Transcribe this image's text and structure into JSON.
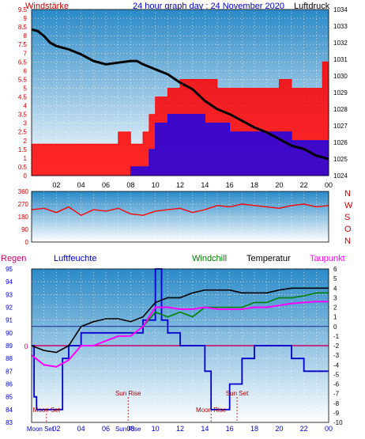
{
  "colors": {
    "wind_label": "#cc0000",
    "title": "#0000cc",
    "axis_text": "#000000",
    "wind_fill": "#ff0000",
    "gust_fill": "#0000ff",
    "pressure_line": "#000000",
    "plot_grad_top": "#2a8ac8",
    "plot_grad_bottom": "#ffffff",
    "dir_series": "#ff0000",
    "regen": "#cc0066",
    "luftfeuchte": "#0000cc",
    "windchill": "#008000",
    "temperatur": "#000000",
    "taupunkt": "#ff00ff",
    "astro_text": "#aa0000"
  },
  "header": {
    "left_label": "Windstärke",
    "title": "24 hour graph day : 24 November 2020",
    "right_label": "Luftdruck"
  },
  "chart_data": [
    {
      "type": "line",
      "name": "wind-and-pressure",
      "x_ticks": [
        "02",
        "04",
        "06",
        "08",
        "10",
        "12",
        "14",
        "16",
        "18",
        "20",
        "22",
        "00"
      ],
      "y_left_ticks": [
        "0",
        "0.5",
        "1",
        "1.5",
        "2",
        "2.5",
        "3",
        "3.5",
        "4",
        "4.5",
        "5",
        "5.5",
        "6",
        "6.5",
        "7",
        "7.5",
        "8",
        "8.5",
        "9",
        "9.5"
      ],
      "y_right_ticks": [
        "1024",
        "1025",
        "1026",
        "1027",
        "1028",
        "1029",
        "1030",
        "1031",
        "1032",
        "1033",
        "1034"
      ],
      "ylim_left": [
        0,
        9.5
      ],
      "ylim_right": [
        1024,
        1034
      ],
      "xlim_hours": [
        0,
        24
      ],
      "series": [
        {
          "role": "wind",
          "points": [
            [
              0,
              1.8
            ],
            [
              1,
              1.8
            ],
            [
              2,
              1.8
            ],
            [
              3,
              1.8
            ],
            [
              4,
              1.8
            ],
            [
              5,
              1.8
            ],
            [
              6,
              1.8
            ],
            [
              7,
              2.5
            ],
            [
              8,
              1.8
            ],
            [
              8.5,
              1.8
            ],
            [
              9,
              2.5
            ],
            [
              9.5,
              3.5
            ],
            [
              10,
              4.5
            ],
            [
              11,
              5
            ],
            [
              12,
              5.5
            ],
            [
              13,
              5.5
            ],
            [
              14,
              5.5
            ],
            [
              15,
              5
            ],
            [
              16,
              5
            ],
            [
              17,
              5
            ],
            [
              18,
              5
            ],
            [
              19,
              5
            ],
            [
              20,
              5.5
            ],
            [
              21,
              5
            ],
            [
              22,
              5
            ],
            [
              23,
              5
            ],
            [
              23.5,
              6.5
            ],
            [
              24,
              5.5
            ]
          ]
        },
        {
          "role": "gust",
          "points": [
            [
              0,
              0
            ],
            [
              1,
              0
            ],
            [
              2,
              0
            ],
            [
              3,
              0
            ],
            [
              4,
              0
            ],
            [
              5,
              0
            ],
            [
              6,
              0
            ],
            [
              7,
              0
            ],
            [
              8,
              0.5
            ],
            [
              9,
              0.5
            ],
            [
              9.5,
              1.5
            ],
            [
              10,
              3
            ],
            [
              11,
              3.5
            ],
            [
              12,
              3.5
            ],
            [
              13,
              3.5
            ],
            [
              14,
              3
            ],
            [
              15,
              3
            ],
            [
              16,
              2.5
            ],
            [
              17,
              2.5
            ],
            [
              18,
              2.5
            ],
            [
              19,
              2.5
            ],
            [
              20,
              2.5
            ],
            [
              21,
              2
            ],
            [
              22,
              2
            ],
            [
              23,
              2
            ],
            [
              24,
              2
            ]
          ]
        },
        {
          "role": "pressure",
          "points": [
            [
              0,
              1032.8
            ],
            [
              0.5,
              1032.7
            ],
            [
              1,
              1032.4
            ],
            [
              1.5,
              1032.0
            ],
            [
              2,
              1031.8
            ],
            [
              3,
              1031.6
            ],
            [
              4,
              1031.3
            ],
            [
              5,
              1030.9
            ],
            [
              6,
              1030.7
            ],
            [
              7,
              1030.8
            ],
            [
              8,
              1030.9
            ],
            [
              8.5,
              1030.9
            ],
            [
              9,
              1030.7
            ],
            [
              10,
              1030.4
            ],
            [
              11,
              1030.1
            ],
            [
              12,
              1029.6
            ],
            [
              13,
              1029.2
            ],
            [
              14,
              1028.5
            ],
            [
              15,
              1028.0
            ],
            [
              16,
              1027.7
            ],
            [
              17,
              1027.3
            ],
            [
              18,
              1026.9
            ],
            [
              19,
              1026.6
            ],
            [
              20,
              1026.2
            ],
            [
              21,
              1025.8
            ],
            [
              22,
              1025.6
            ],
            [
              23,
              1025.2
            ],
            [
              24,
              1025.0
            ]
          ]
        }
      ]
    },
    {
      "type": "line",
      "name": "wind-direction",
      "y_ticks": [
        "0",
        "90",
        "180",
        "270",
        "360"
      ],
      "ylim": [
        0,
        360
      ],
      "compass": [
        "N",
        "W",
        "S",
        "O",
        "N"
      ],
      "points": [
        [
          0,
          230
        ],
        [
          1,
          240
        ],
        [
          2,
          210
        ],
        [
          3,
          250
        ],
        [
          4,
          190
        ],
        [
          5,
          230
        ],
        [
          6,
          220
        ],
        [
          7,
          240
        ],
        [
          8,
          200
        ],
        [
          9,
          190
        ],
        [
          10,
          220
        ],
        [
          11,
          230
        ],
        [
          12,
          240
        ],
        [
          13,
          210
        ],
        [
          14,
          230
        ],
        [
          15,
          260
        ],
        [
          16,
          250
        ],
        [
          17,
          270
        ],
        [
          18,
          260
        ],
        [
          19,
          250
        ],
        [
          20,
          240
        ],
        [
          21,
          260
        ],
        [
          22,
          270
        ],
        [
          23,
          250
        ],
        [
          24,
          260
        ]
      ]
    },
    {
      "type": "line",
      "name": "humidity-temperature",
      "header_labels": {
        "regen": "Regen",
        "luftfeuchte": "Luftfeuchte",
        "windchill": "Windchill",
        "temperatur": "Temperatur",
        "taupunkt": "Taupunkt"
      },
      "regen_value": "0",
      "y_left_ticks": [
        "83",
        "84",
        "85",
        "86",
        "87",
        "88",
        "89",
        "90",
        "91",
        "92",
        "93",
        "94",
        "95"
      ],
      "y_right_ticks": [
        "-10",
        "-9",
        "-8",
        "-7",
        "-6",
        "-5",
        "-4",
        "-3",
        "-2",
        "-1",
        "0",
        "1",
        "2",
        "3",
        "4",
        "5",
        "6"
      ],
      "ylim_left": [
        83,
        95
      ],
      "ylim_right": [
        -10,
        6
      ],
      "x_ticks": [
        "02",
        "04",
        "06",
        "08",
        "10",
        "12",
        "14",
        "16",
        "18",
        "20",
        "22",
        "00"
      ],
      "annotations": [
        {
          "text": "Moon Set",
          "hour": 1.2
        },
        {
          "text": "Sun Rise",
          "hour": 7.8
        },
        {
          "text": "Moon Rise",
          "hour": 14.5
        },
        {
          "text": "Sun Set",
          "hour": 16.6
        }
      ],
      "bottom_labels": {
        "moon_set": "Moon Set",
        "sun_rise": "Sun Rise"
      },
      "series": [
        {
          "role": "luftfeuchte",
          "axis": "left",
          "points": [
            [
              0,
              89
            ],
            [
              0.2,
              85
            ],
            [
              0.4,
              84
            ],
            [
              2,
              84
            ],
            [
              2.5,
              88
            ],
            [
              3,
              89
            ],
            [
              4,
              90
            ],
            [
              5,
              90
            ],
            [
              6,
              90
            ],
            [
              7,
              90
            ],
            [
              8,
              90
            ],
            [
              9,
              91
            ],
            [
              10,
              95
            ],
            [
              10.5,
              91
            ],
            [
              11,
              90
            ],
            [
              12,
              89
            ],
            [
              13,
              89
            ],
            [
              14,
              87
            ],
            [
              14.5,
              84
            ],
            [
              15,
              84
            ],
            [
              16,
              86
            ],
            [
              17,
              88
            ],
            [
              18,
              89
            ],
            [
              19,
              89
            ],
            [
              20,
              89
            ],
            [
              21,
              88
            ],
            [
              22,
              87
            ],
            [
              23,
              87
            ],
            [
              24,
              87
            ]
          ]
        },
        {
          "role": "temperatur",
          "axis": "right",
          "points": [
            [
              0,
              -2
            ],
            [
              1,
              -2.5
            ],
            [
              2,
              -2.7
            ],
            [
              3,
              -2
            ],
            [
              4,
              0
            ],
            [
              5,
              0.5
            ],
            [
              6,
              0.8
            ],
            [
              7,
              0.8
            ],
            [
              8,
              0.5
            ],
            [
              9,
              1
            ],
            [
              10,
              2.5
            ],
            [
              11,
              3
            ],
            [
              12,
              3
            ],
            [
              13,
              3.5
            ],
            [
              14,
              3.8
            ],
            [
              15,
              3.8
            ],
            [
              16,
              3.8
            ],
            [
              17,
              3.5
            ],
            [
              18,
              3.5
            ],
            [
              19,
              3.5
            ],
            [
              20,
              3.8
            ],
            [
              21,
              4
            ],
            [
              22,
              4
            ],
            [
              23,
              4
            ],
            [
              24,
              4
            ]
          ]
        },
        {
          "role": "windchill",
          "axis": "right",
          "points": [
            [
              9,
              0
            ],
            [
              10,
              1.5
            ],
            [
              11,
              1
            ],
            [
              12,
              1.5
            ],
            [
              13,
              1
            ],
            [
              14,
              2
            ],
            [
              15,
              2
            ],
            [
              16,
              2
            ],
            [
              17,
              2
            ],
            [
              18,
              2.5
            ],
            [
              19,
              2.5
            ],
            [
              20,
              3
            ],
            [
              21,
              3
            ],
            [
              22,
              3.2
            ],
            [
              23,
              3.5
            ],
            [
              24,
              3.5
            ]
          ]
        },
        {
          "role": "taupunkt",
          "axis": "right",
          "points": [
            [
              0,
              -3
            ],
            [
              1,
              -4
            ],
            [
              2,
              -4.2
            ],
            [
              3,
              -3.5
            ],
            [
              4,
              -2
            ],
            [
              5,
              -2
            ],
            [
              6,
              -1.5
            ],
            [
              7,
              -1
            ],
            [
              8,
              -1
            ],
            [
              9,
              0
            ],
            [
              10,
              2
            ],
            [
              11,
              2
            ],
            [
              12,
              1.8
            ],
            [
              13,
              1.8
            ],
            [
              14,
              2
            ],
            [
              15,
              1.8
            ],
            [
              16,
              1.8
            ],
            [
              17,
              1.8
            ],
            [
              18,
              2
            ],
            [
              19,
              2
            ],
            [
              20,
              2.2
            ],
            [
              21,
              2.4
            ],
            [
              22,
              2.5
            ],
            [
              23,
              2.6
            ],
            [
              24,
              2.6
            ]
          ]
        }
      ]
    }
  ]
}
